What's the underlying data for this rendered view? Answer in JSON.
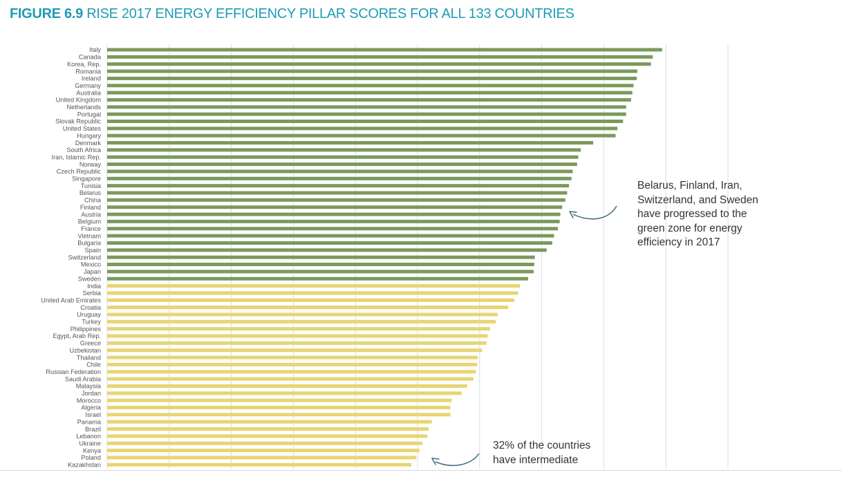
{
  "figure": {
    "number": "FIGURE 6.9",
    "title": "RISE 2017 ENERGY EFFICIENCY PILLAR SCORES FOR ALL 133 COUNTRIES"
  },
  "colors": {
    "title": "#1f9bb6",
    "green_zone": "#7a9a5c",
    "yellow_zone": "#e8d572",
    "label": "#555555",
    "grid": "#dcdcdc",
    "arrow": "#3d6878"
  },
  "annotations": {
    "green_note": "Belarus, Finland, Iran, Switzerland, and Sweden have progressed to the green zone for energy efficiency in 2017",
    "yellow_note_line1": "32% of the countries",
    "yellow_note_line2": "have intermediate"
  },
  "chart_data": {
    "type": "bar",
    "orientation": "horizontal",
    "title": "RISE 2017 ENERGY EFFICIENCY PILLAR SCORES FOR ALL 133 COUNTRIES",
    "xlabel": "",
    "ylabel": "",
    "xlim": [
      0,
      100
    ],
    "grid": true,
    "series": [
      {
        "name": "Green zone",
        "color": "#7a9a5c",
        "categories": [
          "Italy",
          "Canada",
          "Korea, Rep.",
          "Romania",
          "Ireland",
          "Germany",
          "Australia",
          "United Kingdom",
          "Netherlands",
          "Portugal",
          "Slovak Republic",
          "United States",
          "Hungary",
          "Denmark",
          "South Africa",
          "Iran, Islamic Rep.",
          "Norway",
          "Czech Republic",
          "Singapore",
          "Tunisia",
          "Belarus",
          "China",
          "Finland",
          "Austria",
          "Belgium",
          "France",
          "Vietnam",
          "Bulgaria",
          "Spain",
          "Switzerland",
          "Mexico",
          "Japan",
          "Sweden"
        ],
        "values": [
          89.4,
          87.9,
          87.6,
          85.4,
          85.3,
          84.8,
          84.6,
          84.4,
          83.6,
          83.6,
          83.1,
          82.2,
          81.9,
          78.3,
          76.3,
          75.9,
          75.7,
          75.0,
          74.8,
          74.4,
          74.1,
          73.8,
          73.3,
          73.0,
          72.9,
          72.6,
          72.0,
          71.7,
          70.8,
          68.9,
          68.8,
          68.7,
          67.8
        ]
      },
      {
        "name": "Yellow zone",
        "color": "#e8d572",
        "categories": [
          "India",
          "Serbia",
          "United Arab Emirates",
          "Croatia",
          "Uruguay",
          "Turkey",
          "Philippines",
          "Egypt, Arab Rep.",
          "Greece",
          "Uzbekistan",
          "Thailand",
          "Chile",
          "Russian Federation",
          "Saudi Arabia",
          "Malaysia",
          "Jordan",
          "Morocco",
          "Algeria",
          "Israel",
          "Panama",
          "Brazil",
          "Lebanon",
          "Ukraine",
          "Kenya",
          "Poland",
          "Kazakhstan"
        ],
        "values": [
          66.5,
          66.2,
          65.6,
          64.6,
          62.9,
          62.6,
          61.7,
          61.3,
          61.1,
          60.4,
          59.7,
          59.6,
          59.4,
          59.0,
          58.0,
          57.1,
          55.5,
          55.3,
          55.3,
          52.3,
          51.8,
          51.6,
          50.8,
          50.3,
          49.8,
          49.0
        ]
      }
    ]
  }
}
